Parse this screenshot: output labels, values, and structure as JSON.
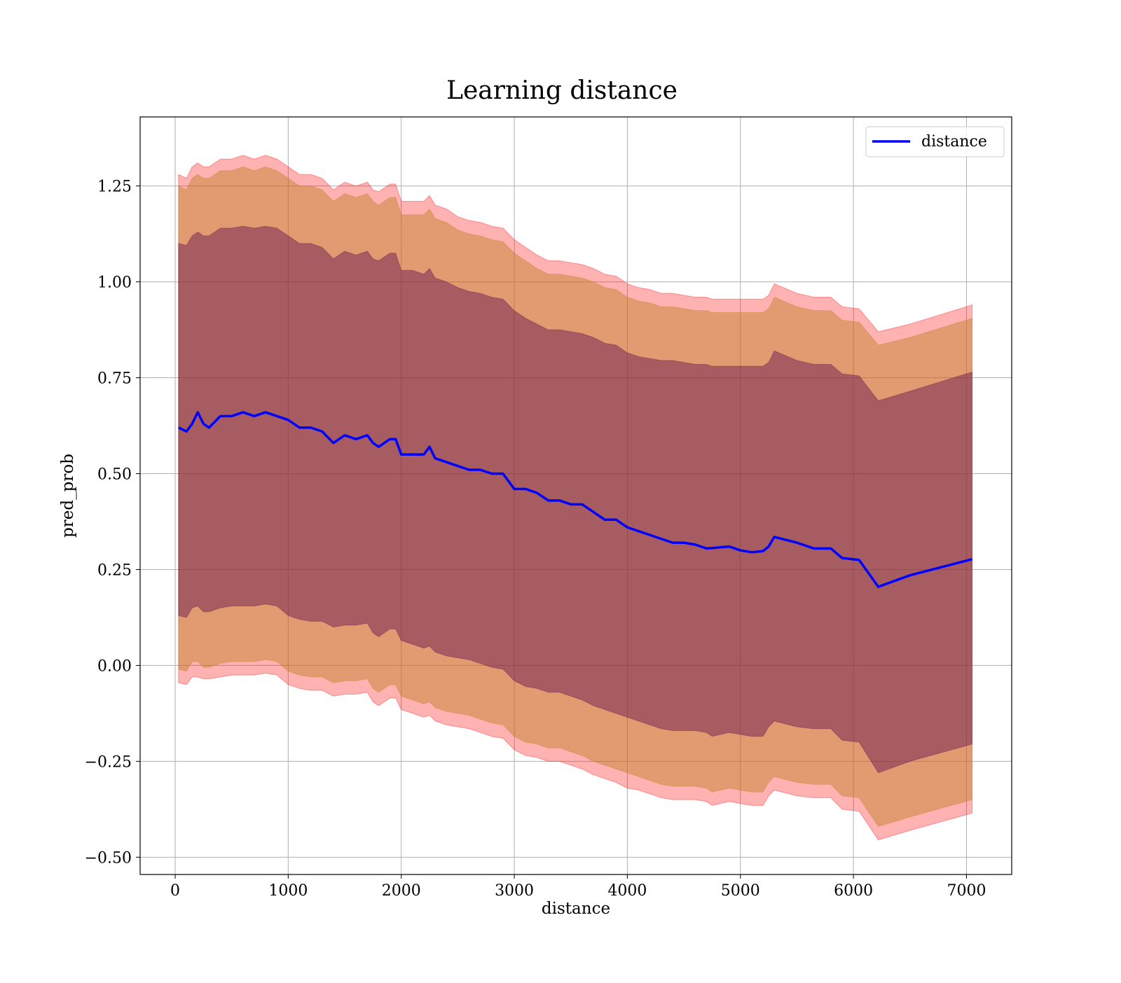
{
  "chart_data": {
    "type": "line",
    "title": "Learning distance",
    "xlabel": "distance",
    "ylabel": "pred_prob",
    "xlim": [
      -310,
      7400
    ],
    "ylim": [
      -0.545,
      1.43
    ],
    "xticks": [
      0,
      1000,
      2000,
      3000,
      4000,
      5000,
      6000,
      7000
    ],
    "xtick_labels": [
      "0",
      "1000",
      "2000",
      "3000",
      "4000",
      "5000",
      "6000",
      "7000"
    ],
    "yticks": [
      -0.5,
      -0.25,
      0.0,
      0.25,
      0.5,
      0.75,
      1.0,
      1.25
    ],
    "ytick_labels": [
      "−0.50",
      "−0.25",
      "0.00",
      "0.25",
      "0.50",
      "0.75",
      "1.00",
      "1.25"
    ],
    "grid": true,
    "legend_position": "top-right",
    "colors": {
      "line": "#0000ff",
      "outer_band": "#ff0000",
      "middle_band": "#bf7f1f",
      "inner_band": "#5f0f4f",
      "grid": "#b0b0b0"
    },
    "series": [
      {
        "name": "distance",
        "x": [
          30,
          100,
          150,
          200,
          250,
          300,
          400,
          500,
          600,
          700,
          800,
          900,
          1000,
          1100,
          1200,
          1300,
          1400,
          1500,
          1600,
          1700,
          1750,
          1800,
          1900,
          1950,
          2000,
          2100,
          2200,
          2250,
          2300,
          2400,
          2500,
          2600,
          2700,
          2800,
          2900,
          3000,
          3100,
          3200,
          3300,
          3400,
          3500,
          3600,
          3700,
          3800,
          3900,
          4000,
          4100,
          4200,
          4300,
          4400,
          4500,
          4600,
          4700,
          4750,
          4900,
          5000,
          5100,
          5200,
          5250,
          5300,
          5500,
          5650,
          5800,
          5900,
          6050,
          6220,
          6500,
          7050
        ],
        "y": [
          0.62,
          0.61,
          0.63,
          0.66,
          0.63,
          0.62,
          0.65,
          0.65,
          0.66,
          0.65,
          0.66,
          0.65,
          0.64,
          0.62,
          0.62,
          0.61,
          0.58,
          0.6,
          0.59,
          0.6,
          0.58,
          0.57,
          0.59,
          0.59,
          0.55,
          0.55,
          0.55,
          0.57,
          0.54,
          0.53,
          0.52,
          0.51,
          0.51,
          0.5,
          0.5,
          0.46,
          0.46,
          0.45,
          0.43,
          0.43,
          0.42,
          0.42,
          0.4,
          0.38,
          0.38,
          0.36,
          0.35,
          0.34,
          0.33,
          0.32,
          0.32,
          0.315,
          0.305,
          0.306,
          0.31,
          0.3,
          0.295,
          0.298,
          0.31,
          0.335,
          0.32,
          0.305,
          0.305,
          0.28,
          0.275,
          0.205,
          0.235,
          0.277
        ]
      }
    ],
    "bands": [
      {
        "lower": [
          -0.045,
          -0.05,
          -0.03,
          -0.03,
          -0.035,
          -0.035,
          -0.03,
          -0.025,
          -0.025,
          -0.025,
          -0.02,
          -0.025,
          -0.05,
          -0.06,
          -0.065,
          -0.065,
          -0.08,
          -0.075,
          -0.075,
          -0.07,
          -0.095,
          -0.105,
          -0.085,
          -0.085,
          -0.115,
          -0.125,
          -0.135,
          -0.13,
          -0.145,
          -0.155,
          -0.16,
          -0.165,
          -0.175,
          -0.185,
          -0.19,
          -0.22,
          -0.235,
          -0.24,
          -0.25,
          -0.25,
          -0.26,
          -0.27,
          -0.285,
          -0.295,
          -0.305,
          -0.32,
          -0.325,
          -0.335,
          -0.345,
          -0.35,
          -0.35,
          -0.35,
          -0.355,
          -0.365,
          -0.355,
          -0.36,
          -0.365,
          -0.365,
          -0.34,
          -0.325,
          -0.34,
          -0.345,
          -0.345,
          -0.375,
          -0.38,
          -0.455,
          -0.43,
          -0.385
        ],
        "upper": [
          1.28,
          1.27,
          1.3,
          1.31,
          1.3,
          1.3,
          1.32,
          1.32,
          1.33,
          1.32,
          1.33,
          1.32,
          1.3,
          1.28,
          1.28,
          1.27,
          1.24,
          1.26,
          1.25,
          1.26,
          1.24,
          1.235,
          1.255,
          1.255,
          1.21,
          1.21,
          1.21,
          1.225,
          1.2,
          1.19,
          1.17,
          1.16,
          1.155,
          1.145,
          1.14,
          1.11,
          1.09,
          1.07,
          1.055,
          1.055,
          1.05,
          1.045,
          1.035,
          1.02,
          1.015,
          0.995,
          0.985,
          0.98,
          0.97,
          0.97,
          0.965,
          0.96,
          0.96,
          0.955,
          0.955,
          0.955,
          0.955,
          0.955,
          0.965,
          0.995,
          0.97,
          0.96,
          0.96,
          0.935,
          0.93,
          0.87,
          0.89,
          0.94
        ]
      },
      {
        "lower": [
          -0.01,
          -0.015,
          0.01,
          0.01,
          -0.005,
          -0.005,
          0.005,
          0.01,
          0.01,
          0.01,
          0.015,
          0.01,
          -0.015,
          -0.025,
          -0.03,
          -0.03,
          -0.045,
          -0.04,
          -0.04,
          -0.035,
          -0.06,
          -0.07,
          -0.05,
          -0.05,
          -0.08,
          -0.09,
          -0.1,
          -0.095,
          -0.11,
          -0.12,
          -0.125,
          -0.13,
          -0.14,
          -0.15,
          -0.155,
          -0.185,
          -0.2,
          -0.205,
          -0.215,
          -0.215,
          -0.225,
          -0.235,
          -0.25,
          -0.26,
          -0.27,
          -0.28,
          -0.29,
          -0.3,
          -0.31,
          -0.315,
          -0.315,
          -0.315,
          -0.32,
          -0.33,
          -0.32,
          -0.325,
          -0.33,
          -0.33,
          -0.305,
          -0.29,
          -0.305,
          -0.31,
          -0.31,
          -0.34,
          -0.345,
          -0.42,
          -0.395,
          -0.35
        ],
        "upper": [
          1.25,
          1.24,
          1.27,
          1.28,
          1.27,
          1.27,
          1.29,
          1.29,
          1.3,
          1.29,
          1.3,
          1.29,
          1.27,
          1.25,
          1.25,
          1.24,
          1.21,
          1.23,
          1.22,
          1.23,
          1.21,
          1.2,
          1.22,
          1.22,
          1.175,
          1.175,
          1.175,
          1.19,
          1.165,
          1.155,
          1.135,
          1.125,
          1.12,
          1.11,
          1.105,
          1.075,
          1.055,
          1.035,
          1.02,
          1.02,
          1.015,
          1.01,
          1.0,
          0.985,
          0.98,
          0.96,
          0.95,
          0.945,
          0.935,
          0.935,
          0.93,
          0.925,
          0.925,
          0.92,
          0.92,
          0.92,
          0.92,
          0.92,
          0.93,
          0.96,
          0.935,
          0.925,
          0.925,
          0.9,
          0.895,
          0.835,
          0.855,
          0.905
        ]
      },
      {
        "lower": [
          0.13,
          0.125,
          0.15,
          0.155,
          0.14,
          0.14,
          0.15,
          0.155,
          0.155,
          0.155,
          0.16,
          0.155,
          0.13,
          0.12,
          0.115,
          0.115,
          0.1,
          0.105,
          0.105,
          0.11,
          0.085,
          0.075,
          0.095,
          0.095,
          0.065,
          0.055,
          0.045,
          0.05,
          0.035,
          0.025,
          0.02,
          0.015,
          0.005,
          -0.005,
          -0.01,
          -0.04,
          -0.055,
          -0.06,
          -0.07,
          -0.07,
          -0.08,
          -0.09,
          -0.105,
          -0.115,
          -0.125,
          -0.135,
          -0.145,
          -0.155,
          -0.165,
          -0.17,
          -0.17,
          -0.17,
          -0.175,
          -0.185,
          -0.175,
          -0.18,
          -0.185,
          -0.185,
          -0.16,
          -0.145,
          -0.16,
          -0.165,
          -0.165,
          -0.195,
          -0.2,
          -0.28,
          -0.25,
          -0.205
        ],
        "upper": [
          1.1,
          1.095,
          1.12,
          1.13,
          1.12,
          1.12,
          1.14,
          1.14,
          1.145,
          1.14,
          1.145,
          1.14,
          1.12,
          1.1,
          1.1,
          1.09,
          1.06,
          1.08,
          1.07,
          1.08,
          1.06,
          1.055,
          1.075,
          1.075,
          1.03,
          1.03,
          1.02,
          1.035,
          1.01,
          1.0,
          0.985,
          0.975,
          0.97,
          0.96,
          0.955,
          0.925,
          0.905,
          0.89,
          0.875,
          0.875,
          0.87,
          0.865,
          0.855,
          0.84,
          0.835,
          0.815,
          0.805,
          0.8,
          0.795,
          0.795,
          0.79,
          0.785,
          0.785,
          0.78,
          0.78,
          0.78,
          0.78,
          0.78,
          0.79,
          0.82,
          0.795,
          0.785,
          0.785,
          0.76,
          0.755,
          0.69,
          0.715,
          0.765
        ]
      }
    ]
  }
}
